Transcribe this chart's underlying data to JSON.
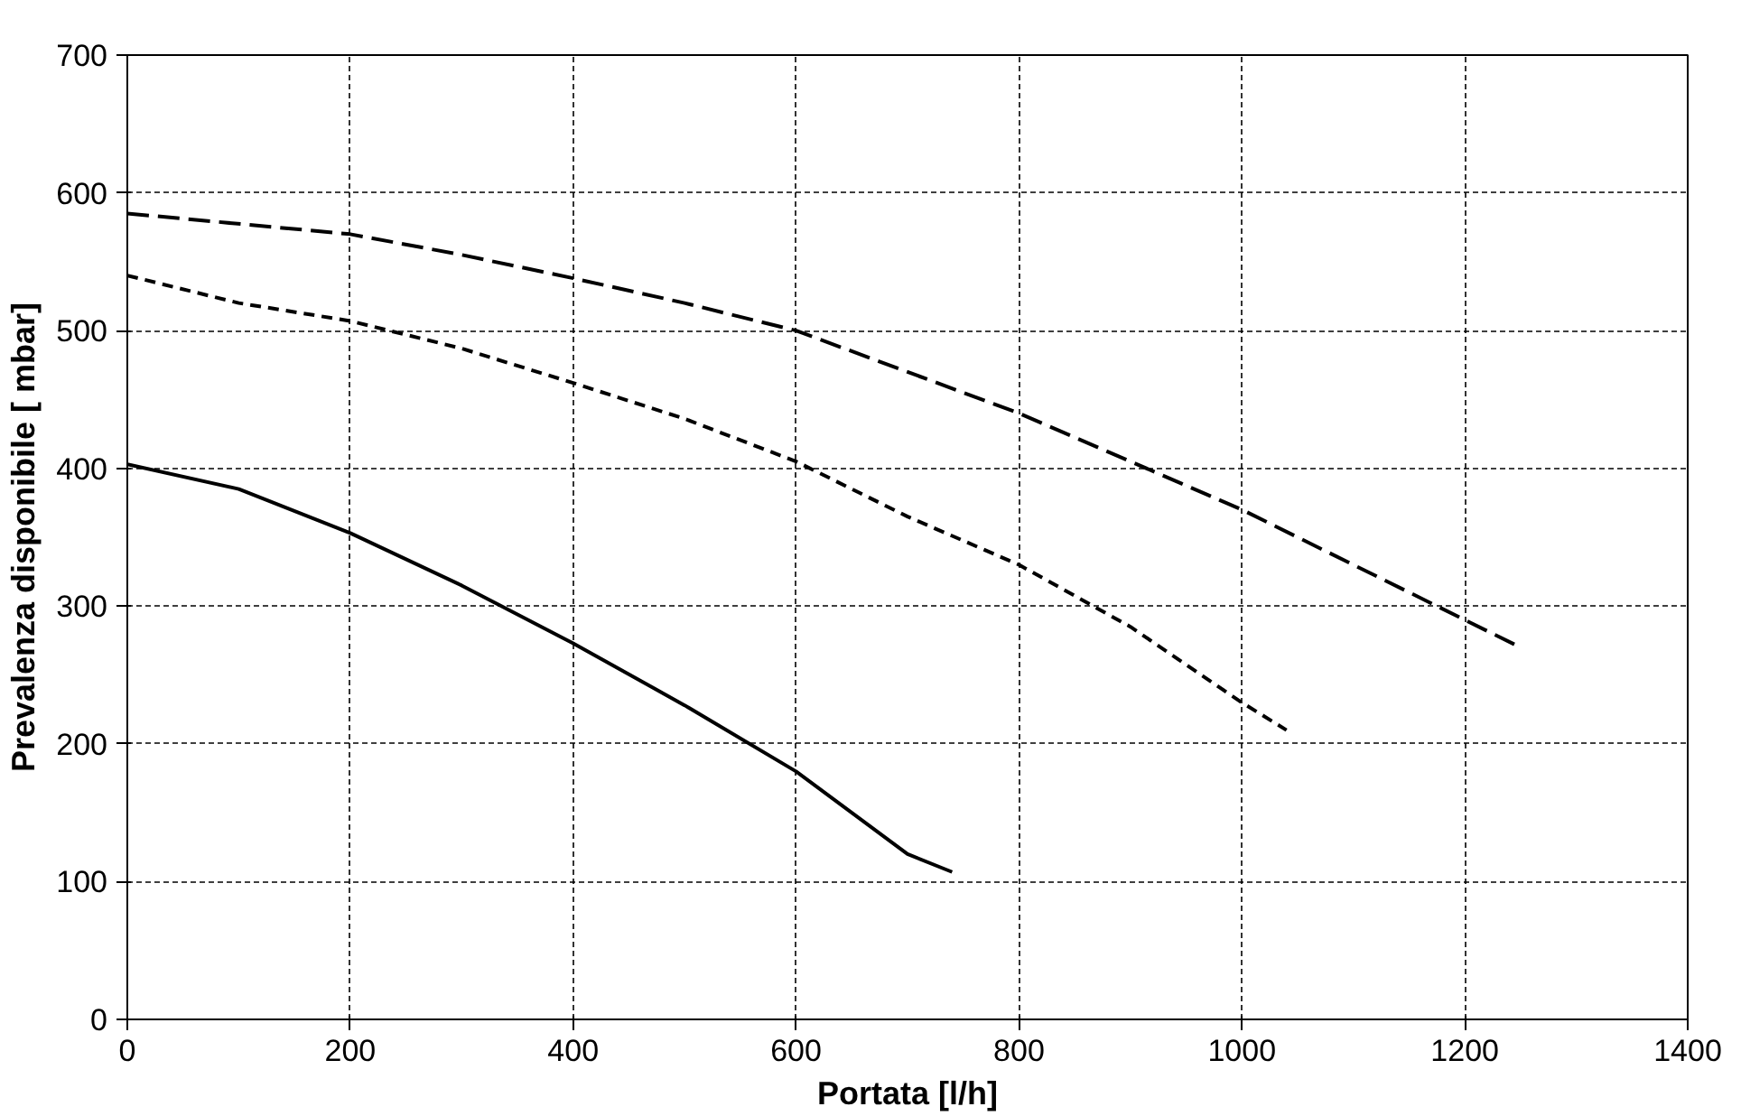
{
  "chart_data": {
    "type": "line",
    "xlabel": "Portata [l/h]",
    "ylabel": "Prevalenza disponibile [ mbar]",
    "xlim": [
      0,
      1400
    ],
    "xticks": [
      0,
      200,
      400,
      600,
      800,
      1000,
      1200,
      1400
    ],
    "ylim": [
      0,
      700
    ],
    "yticks": [
      0,
      100,
      200,
      300,
      400,
      500,
      600,
      700
    ],
    "grid": true,
    "marker": "none",
    "series": [
      {
        "color": "#000000",
        "line_style": "solid",
        "x": [
          0,
          100,
          200,
          300,
          400,
          500,
          600,
          650,
          700,
          740
        ],
        "values": [
          403,
          385,
          353,
          315,
          273,
          228,
          180,
          150,
          120,
          107
        ]
      },
      {
        "color": "#000000",
        "line_style": "dashed",
        "x": [
          0,
          100,
          200,
          300,
          400,
          500,
          600,
          700,
          800,
          900,
          1000,
          1040
        ],
        "values": [
          540,
          520,
          507,
          487,
          462,
          436,
          405,
          365,
          330,
          285,
          230,
          210
        ]
      },
      {
        "color": "#000000",
        "line_style": "dashed",
        "x": [
          0,
          200,
          300,
          400,
          500,
          600,
          700,
          800,
          900,
          1000,
          1100,
          1200,
          1250
        ],
        "values": [
          585,
          570,
          555,
          538,
          520,
          500,
          470,
          440,
          405,
          370,
          330,
          290,
          270
        ]
      }
    ]
  }
}
